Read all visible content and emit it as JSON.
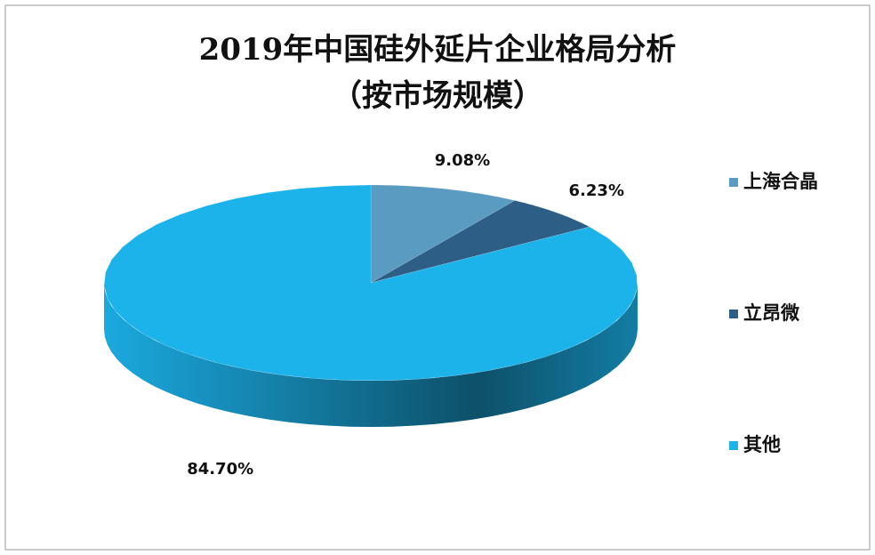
{
  "chart_data": {
    "type": "pie",
    "title": "2019年中国硅外延片企业格局分析",
    "subtitle": "（按市场规模）",
    "categories": [
      "上海合晶",
      "立昂微",
      "其他"
    ],
    "values": [
      9.08,
      6.23,
      84.7
    ],
    "value_labels": [
      "9.08%",
      "6.23%",
      "84.70%"
    ],
    "colors": [
      "#5a9bc2",
      "#2d5f86",
      "#1cb2ea"
    ],
    "legend": "right"
  }
}
